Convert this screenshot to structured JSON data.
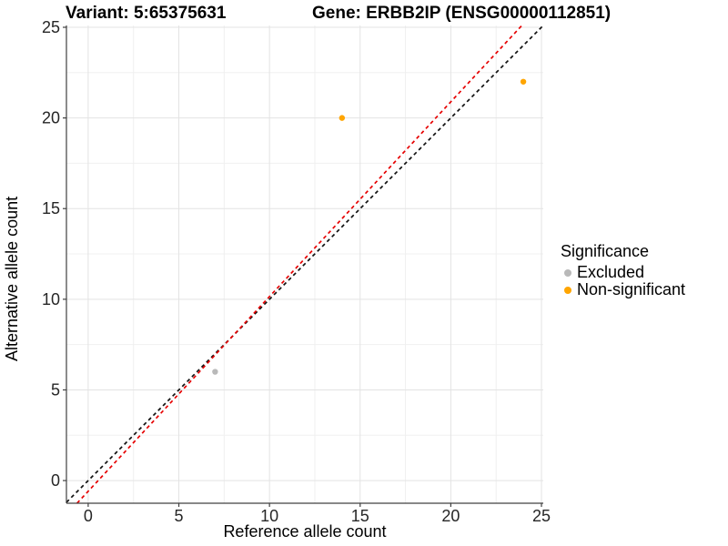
{
  "chart_data": {
    "type": "scatter",
    "title_variant": "Variant: 5:65375631",
    "title_gene": "Gene: ERBB2IP (ENSG00000112851)",
    "xlabel": "Reference allele count",
    "ylabel": "Alternative allele count",
    "xlim": [
      -1.2,
      25.1
    ],
    "ylim": [
      -1.25,
      25.1
    ],
    "xticks": [
      0,
      5,
      10,
      15,
      20,
      25
    ],
    "yticks": [
      0,
      5,
      10,
      15,
      20,
      25
    ],
    "minor_ticks": [
      2.5,
      7.5,
      12.5,
      17.5,
      22.5
    ],
    "grid": "major+minor",
    "legend_position": "right",
    "series": [
      {
        "name": "Excluded",
        "color": "#B9B9B9",
        "points": [
          {
            "x": 7,
            "y": 6
          }
        ]
      },
      {
        "name": "Non-significant",
        "color": "#FFA500",
        "points": [
          {
            "x": 14,
            "y": 20
          },
          {
            "x": 24,
            "y": 22
          }
        ]
      }
    ],
    "lines": [
      {
        "name": "identity-line",
        "slope": 1,
        "intercept": 0,
        "color": "#111111",
        "style": "dashed"
      },
      {
        "name": "ratio-line",
        "slope": 1.074,
        "intercept": -0.59,
        "color": "#E60000",
        "style": "dashed"
      }
    ],
    "legend": {
      "title": "Significance",
      "items": [
        {
          "label": "Excluded",
          "color": "#B9B9B9"
        },
        {
          "label": "Non-significant",
          "color": "#FFA500"
        }
      ]
    },
    "colors": {
      "major_grid": "#E3E3E3",
      "minor_grid": "#F0F0F0",
      "axis_line": "#404040",
      "tick_text": "#262626"
    }
  }
}
